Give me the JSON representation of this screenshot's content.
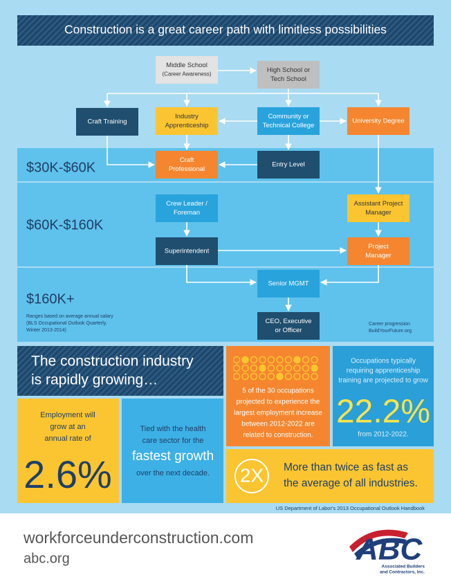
{
  "header": {
    "title": "Construction is a great career path with limitless possibilities"
  },
  "pathway": {
    "nodes": [
      {
        "lines": [
          "Middle School",
          "(Career Awareness)"
        ]
      },
      {
        "lines": [
          "High School or",
          "Tech School"
        ]
      },
      {
        "lines": [
          "Craft Training"
        ]
      },
      {
        "lines": [
          "Industry",
          "Apprenticeship"
        ]
      },
      {
        "lines": [
          "Community or",
          "Technical College"
        ]
      },
      {
        "lines": [
          "University Degree"
        ]
      },
      {
        "lines": [
          "Craft",
          "Professional"
        ]
      },
      {
        "lines": [
          "Entry Level"
        ]
      },
      {
        "lines": [
          "Crew Leader /",
          "Foreman"
        ]
      },
      {
        "lines": [
          "Assistant Project",
          "Manager"
        ]
      },
      {
        "lines": [
          "Superintendent"
        ]
      },
      {
        "lines": [
          "Project",
          "Manager"
        ]
      },
      {
        "lines": [
          "Senior MGMT"
        ]
      },
      {
        "lines": [
          "CEO, Executive",
          "or Officer"
        ]
      }
    ],
    "salary_bands": [
      "$30K-$60K",
      "$60K-$160K",
      "$160K+"
    ],
    "salary_note": [
      "Ranges based on average annual salary",
      "(BLS Occupational Outlook Quarterly,",
      "Winter 2013-2014)"
    ],
    "source": [
      "Career progression",
      "BuildYourFuture.org"
    ]
  },
  "growth": {
    "headline": [
      "The construction industry",
      "is rapidly growing…"
    ],
    "occupations": [
      "5 of the 30 occupations",
      "projected to experience the",
      "largest employment increase",
      "between 2012-2022 are",
      "related to construction."
    ],
    "apprenticeship": {
      "lines": [
        "Occupations typically",
        "requiring apprenticeship",
        "training are projected to grow"
      ],
      "stat": "22.2%",
      "period": "from 2012-2022."
    },
    "employment": {
      "lines": [
        "Employment will",
        "grow at an",
        "annual rate of"
      ],
      "stat": "2.6%"
    },
    "health": {
      "lines": [
        "Tied with the health",
        "care sector for the"
      ],
      "highlight": "fastest growth",
      "after": "over the next decade."
    },
    "comparison": {
      "stat": "2X",
      "lines": [
        "More than twice as fast as",
        "the average of all industries."
      ]
    },
    "source": "US Department of Labor's 2013 Occupational Outlook Handbook"
  },
  "footer": {
    "links": [
      "workforceunderconstruction.com",
      "abc.org"
    ],
    "logo": {
      "text": "ABC",
      "tagline": [
        "Associated Builders",
        "and Contractors, Inc."
      ]
    }
  }
}
